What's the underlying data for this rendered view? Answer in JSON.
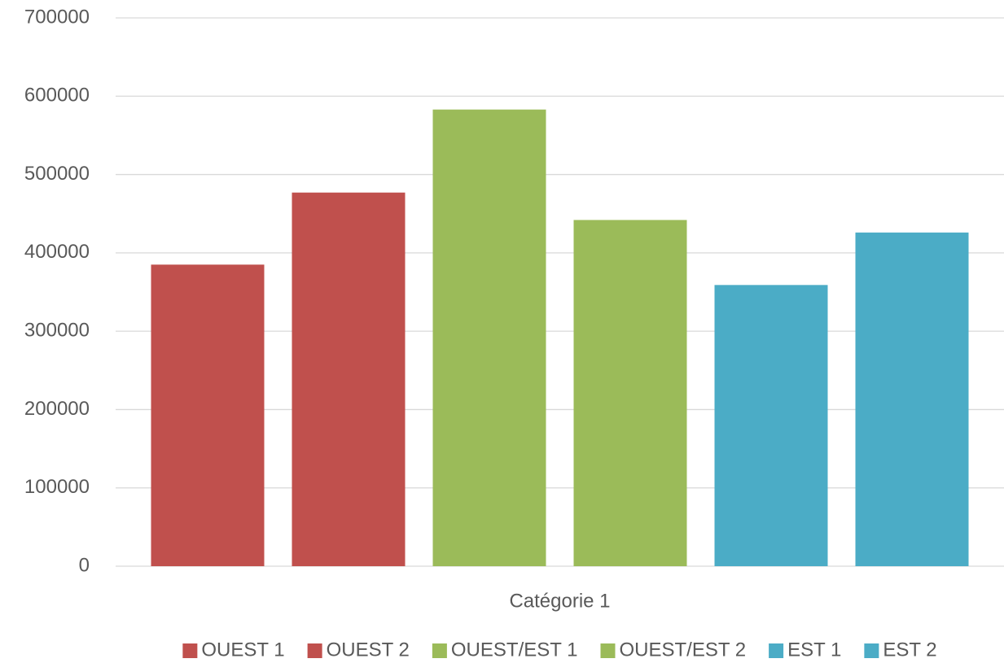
{
  "chart_data": {
    "type": "bar",
    "categories": [
      "Catégorie 1"
    ],
    "series": [
      {
        "name": "OUEST 1",
        "color": "#c0504d",
        "values": [
          385000
        ]
      },
      {
        "name": "OUEST 2",
        "color": "#c0504d",
        "values": [
          477000
        ]
      },
      {
        "name": "OUEST/EST 1",
        "color": "#9bbb59",
        "values": [
          583000
        ]
      },
      {
        "name": "OUEST/EST 2",
        "color": "#9bbb59",
        "values": [
          442000
        ]
      },
      {
        "name": "EST 1",
        "color": "#4bacc6",
        "values": [
          359000
        ]
      },
      {
        "name": "EST 2",
        "color": "#4bacc6",
        "values": [
          426000
        ]
      }
    ],
    "ylim": [
      0,
      700000
    ],
    "yticks": [
      0,
      100000,
      200000,
      300000,
      400000,
      500000,
      600000,
      700000
    ],
    "grid": true,
    "legend": "bottom"
  }
}
